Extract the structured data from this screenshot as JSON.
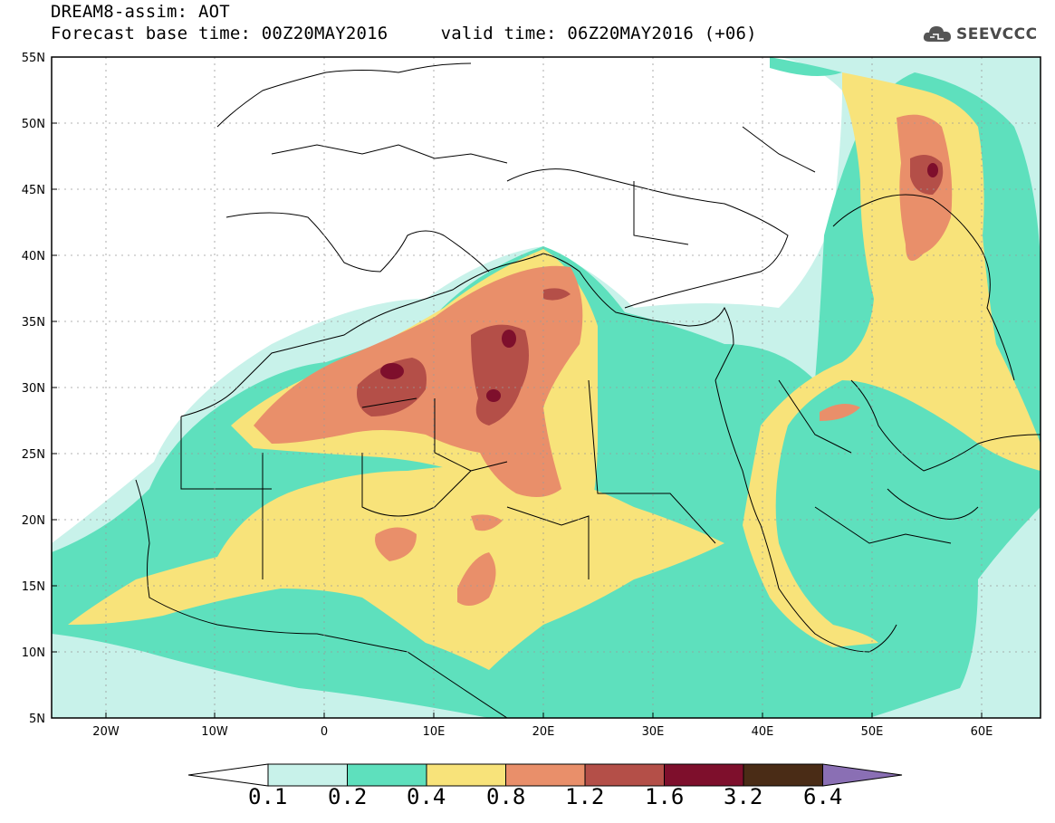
{
  "header": {
    "title": "DREAM8-assim: AOT",
    "base_time_label": "Forecast base time: 00Z20MAY2016",
    "valid_time_label": "valid time: 06Z20MAY2016 (+06)",
    "logo_text": "SEEVCCC"
  },
  "map": {
    "lon_range": [
      -25,
      65
    ],
    "lat_range": [
      5,
      55
    ],
    "lon_ticks": [
      "20W",
      "10W",
      "0",
      "10E",
      "20E",
      "30E",
      "40E",
      "50E",
      "60E"
    ],
    "lat_ticks": [
      "55N",
      "50N",
      "45N",
      "40N",
      "35N",
      "30N",
      "25N",
      "20N",
      "15N",
      "10N",
      "5N"
    ],
    "gridlines": true
  },
  "colorbar": {
    "levels": [
      "0.1",
      "0.2",
      "0.4",
      "0.8",
      "1.2",
      "1.6",
      "3.2",
      "6.4"
    ],
    "colors": [
      "#ffffff",
      "#c8f2ea",
      "#5ee0bd",
      "#f8e37a",
      "#e98f6a",
      "#b44f48",
      "#7e0f2c",
      "#4a2c16",
      "#8a6fb4"
    ]
  }
}
